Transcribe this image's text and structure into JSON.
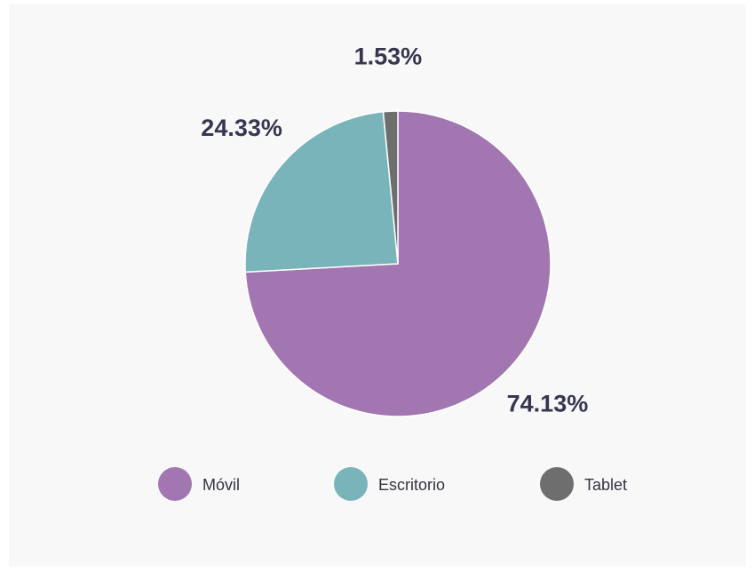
{
  "chart_data": {
    "type": "pie",
    "categories": [
      "Móvil",
      "Escritorio",
      "Tablet"
    ],
    "values": [
      74.13,
      24.33,
      1.53
    ],
    "value_labels": [
      "74.13%",
      "24.33%",
      "1.53%"
    ],
    "colors": [
      "#a276b0",
      "#78b4b9",
      "#6e6e6e"
    ],
    "legend": "bottom"
  }
}
